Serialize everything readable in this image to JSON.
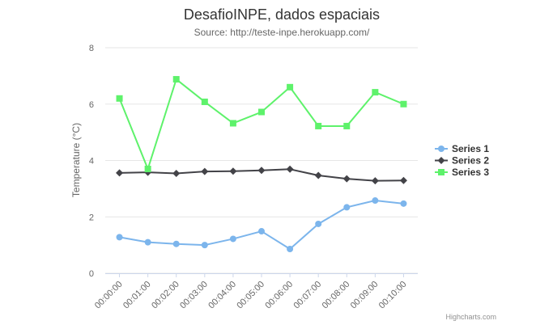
{
  "chart_data": {
    "type": "line",
    "title": "DesafioINPE, dados espaciais",
    "subtitle": "Source: http://teste-inpe.herokuapp.com/",
    "xlabel": "",
    "ylabel": "Temperature (°C)",
    "ylim": [
      0,
      8
    ],
    "yticks": [
      0,
      2,
      4,
      6,
      8
    ],
    "grid": true,
    "legend_position": "right",
    "categories": [
      "00:00:00",
      "00:01:00",
      "00:02:00",
      "00:03:00",
      "00:04:00",
      "00:05:00",
      "00:06:00",
      "00:07:00",
      "00:08:00",
      "00:09:00",
      "00:10:00"
    ],
    "series": [
      {
        "name": "Series 1",
        "color": "#7cb5ec",
        "marker": "circle",
        "values": [
          1.28,
          1.1,
          1.04,
          1.0,
          1.22,
          1.49,
          0.86,
          1.75,
          2.34,
          2.58,
          2.47
        ]
      },
      {
        "name": "Series 2",
        "color": "#434348",
        "marker": "diamond",
        "values": [
          3.56,
          3.58,
          3.54,
          3.61,
          3.62,
          3.65,
          3.69,
          3.47,
          3.35,
          3.28,
          3.29
        ]
      },
      {
        "name": "Series 3",
        "color": "#5ef26b",
        "marker": "square",
        "values": [
          6.2,
          3.7,
          6.88,
          6.08,
          5.32,
          5.72,
          6.6,
          5.22,
          5.22,
          6.42,
          6.0
        ]
      }
    ]
  },
  "credits": "Highcharts.com"
}
